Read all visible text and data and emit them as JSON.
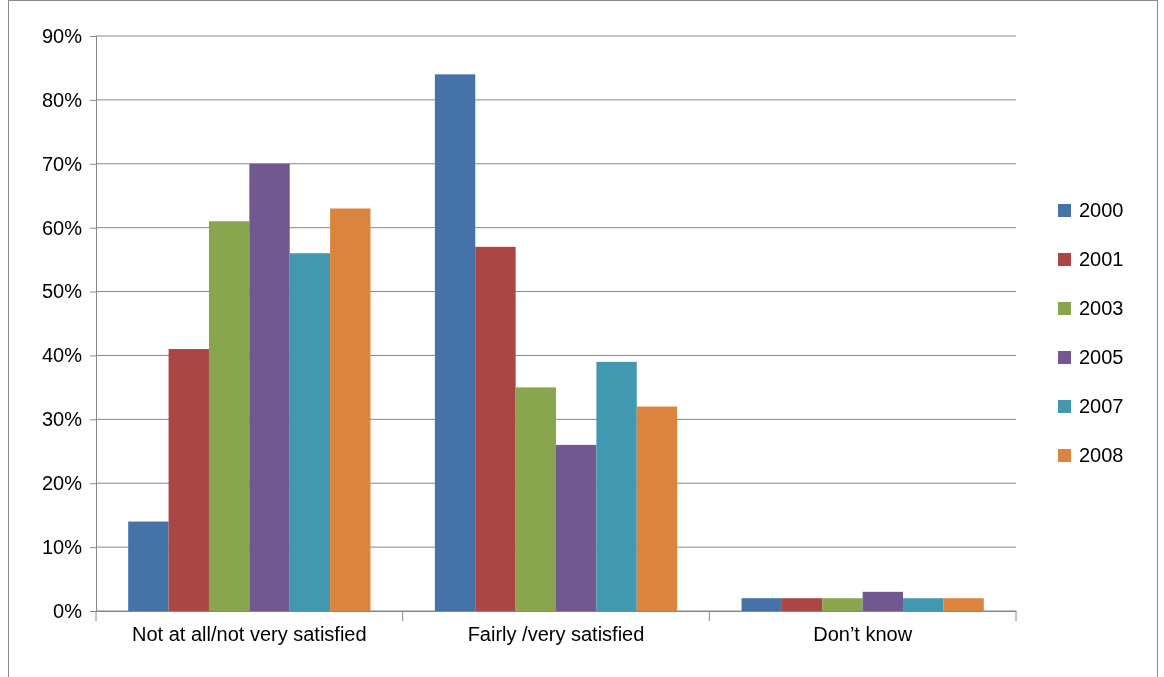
{
  "chart_data": {
    "type": "bar",
    "categories": [
      "Not at all/not very satisfied",
      "Fairly /very satisfied",
      "Don’t know"
    ],
    "series": [
      {
        "name": "2000",
        "color": "#4572a7",
        "values": [
          14,
          84,
          2
        ]
      },
      {
        "name": "2001",
        "color": "#aa4643",
        "values": [
          41,
          57,
          2
        ]
      },
      {
        "name": "2003",
        "color": "#89a54e",
        "values": [
          61,
          35,
          2
        ]
      },
      {
        "name": "2005",
        "color": "#71588f",
        "values": [
          70,
          26,
          3
        ]
      },
      {
        "name": "2007",
        "color": "#4198af",
        "values": [
          56,
          39,
          2
        ]
      },
      {
        "name": "2008",
        "color": "#db843d",
        "values": [
          63,
          32,
          2
        ]
      }
    ],
    "ylim": [
      0,
      90
    ],
    "yticks": [
      {
        "value": 0,
        "label": "0%"
      },
      {
        "value": 10,
        "label": "10%"
      },
      {
        "value": 20,
        "label": "20%"
      },
      {
        "value": 30,
        "label": "30%"
      },
      {
        "value": 40,
        "label": "40%"
      },
      {
        "value": 50,
        "label": "50%"
      },
      {
        "value": 60,
        "label": "60%"
      },
      {
        "value": 70,
        "label": "70%"
      },
      {
        "value": 80,
        "label": "80%"
      },
      {
        "value": 90,
        "label": "90%"
      }
    ],
    "grid": "y",
    "legend": "right"
  }
}
